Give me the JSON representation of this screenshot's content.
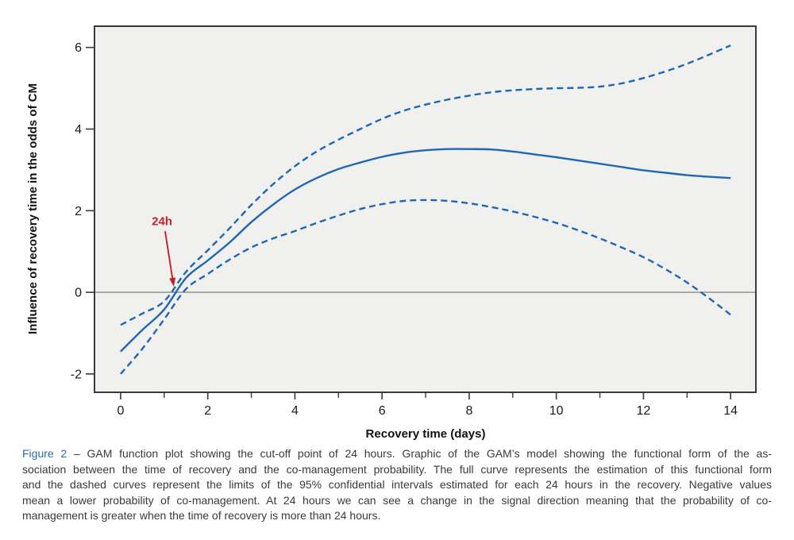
{
  "colors": {
    "curve_blue": "#2166b2",
    "annotation_red": "#c0222b",
    "figure_label_blue": "#3068b0",
    "caption_text": "#3a3a3a",
    "plot_background": "#f0f0ef",
    "frame": "#3a3a3a",
    "zero_line": "#9a9a9a",
    "tick": "#444444"
  },
  "chart_data": {
    "type": "line",
    "title": "",
    "xlabel": "Recovery time (days)",
    "ylabel": "Influence of recovery time in the odds of CM",
    "xlim": [
      -0.6,
      14.58
    ],
    "ylim": [
      -2.45,
      6.52
    ],
    "grid": "off",
    "legend": "none",
    "x_major_ticks": [
      0,
      2,
      4,
      6,
      8,
      10,
      12,
      14
    ],
    "x_minor_ticks": [
      1,
      3,
      5,
      7,
      9,
      11,
      13
    ],
    "y_ticks": [
      -2,
      0,
      2,
      4,
      6
    ],
    "zero_reference_line": 0,
    "x": [
      0,
      0.5,
      1,
      1.5,
      2,
      2.5,
      3,
      3.5,
      4,
      4.5,
      5,
      5.5,
      6,
      6.5,
      7,
      7.5,
      8,
      8.5,
      9,
      9.5,
      10,
      10.5,
      11,
      11.5,
      12,
      12.5,
      13,
      13.5,
      14
    ],
    "series": [
      {
        "name": "GAM estimate (full curve)",
        "style": "solid",
        "values": [
          -1.45,
          -0.92,
          -0.42,
          0.35,
          0.78,
          1.22,
          1.72,
          2.15,
          2.52,
          2.8,
          3.02,
          3.18,
          3.32,
          3.42,
          3.48,
          3.51,
          3.51,
          3.5,
          3.45,
          3.38,
          3.31,
          3.23,
          3.15,
          3.07,
          2.99,
          2.93,
          2.87,
          2.83,
          2.8
        ]
      },
      {
        "name": "95% confidence interval upper limit (dashed)",
        "style": "dashed",
        "values": [
          -0.8,
          -0.52,
          -0.22,
          0.5,
          1.03,
          1.57,
          2.14,
          2.65,
          3.09,
          3.45,
          3.74,
          4.0,
          4.25,
          4.45,
          4.6,
          4.72,
          4.82,
          4.9,
          4.95,
          4.98,
          5.0,
          5.01,
          5.04,
          5.12,
          5.25,
          5.41,
          5.6,
          5.82,
          6.05
        ]
      },
      {
        "name": "95% confidence interval lower limit (dashed)",
        "style": "dashed",
        "values": [
          -2.0,
          -1.38,
          -0.66,
          0.08,
          0.45,
          0.8,
          1.1,
          1.32,
          1.5,
          1.7,
          1.88,
          2.04,
          2.16,
          2.24,
          2.26,
          2.24,
          2.18,
          2.09,
          1.98,
          1.85,
          1.7,
          1.52,
          1.32,
          1.1,
          0.86,
          0.57,
          0.24,
          -0.14,
          -0.55
        ]
      }
    ],
    "annotation": {
      "label": "24h",
      "label_at": {
        "x": 0.95,
        "y": 1.65
      },
      "arrow_from": {
        "x": 1.02,
        "y": 1.5
      },
      "arrow_to": {
        "x": 1.22,
        "y": 0.14
      }
    }
  },
  "caption": {
    "figure_label": "Figure 2",
    "lines": [
      " – GAM function plot showing the cut-off point of 24 hours. Graphic of the GAM’s model showing the functional form of the as-",
      "sociation between the time of recovery and the co-management probability. The full curve represents the estimation of this functional form",
      "and the dashed curves represent the limits of the 95% confidential intervals estimated for each 24 hours in the recovery. Negative values",
      "mean a lower probability of co-management. At 24 hours we can see a change in the signal direction meaning that the probability of co-",
      "management is greater when the time of recovery is more than 24 hours."
    ]
  }
}
